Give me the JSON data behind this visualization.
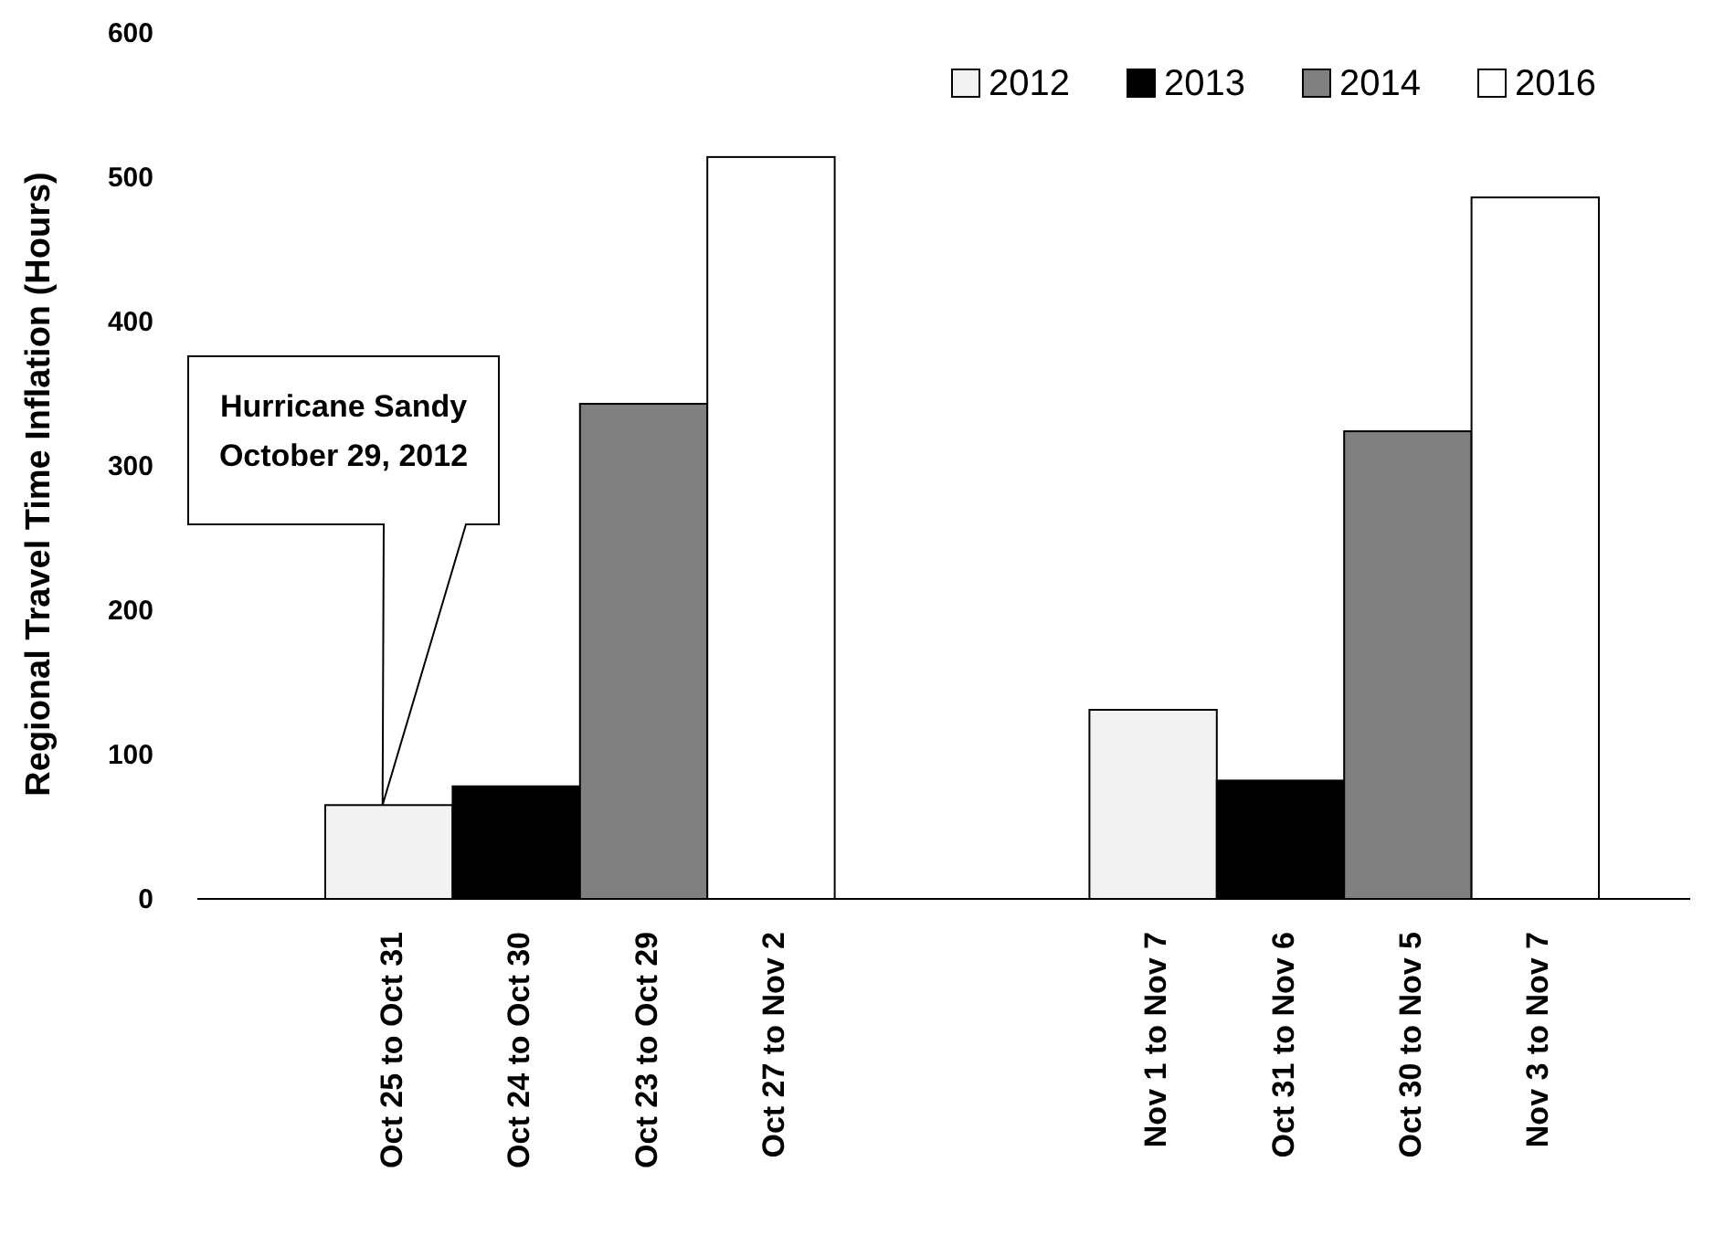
{
  "chart_data": {
    "type": "bar",
    "ylabel": "Regional Travel Time Inflation (Hours)",
    "categories": [
      "Oct 25 to Oct 31",
      "Oct 24 to Oct 30",
      "Oct 23 to Oct 29",
      "Oct 27 to Nov 2",
      null,
      null,
      "Nov 1 to Nov 7",
      "Oct 31 to Nov 6",
      "Oct 30 to Nov 5",
      "Nov 3 to Nov 7"
    ],
    "series": [
      {
        "name": "2012",
        "color": "#f2f2f2",
        "values": [
          65,
          null,
          null,
          null,
          null,
          null,
          131,
          null,
          null,
          null
        ]
      },
      {
        "name": "2013",
        "color": "#000000",
        "values": [
          null,
          78,
          null,
          null,
          null,
          null,
          null,
          82,
          null,
          null
        ]
      },
      {
        "name": "2014",
        "color": "#808080",
        "values": [
          null,
          null,
          343,
          null,
          null,
          null,
          null,
          null,
          324,
          null
        ]
      },
      {
        "name": "2016",
        "color": "#ffffff",
        "values": [
          null,
          null,
          null,
          514,
          null,
          null,
          null,
          null,
          null,
          486
        ]
      }
    ],
    "ylim": [
      0,
      600
    ],
    "yticks": [
      0,
      100,
      200,
      300,
      400,
      500,
      600
    ],
    "grid": false,
    "legend": "top right",
    "annotations": [
      "Hurricane Sandy\nOctober 29, 2012"
    ]
  }
}
